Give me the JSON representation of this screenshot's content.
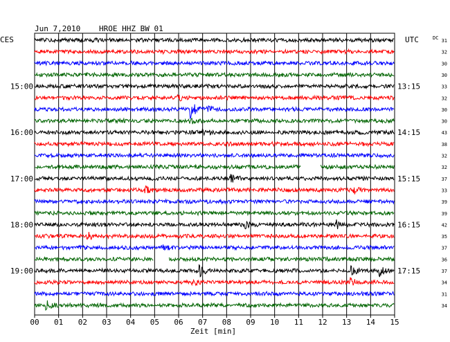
{
  "header": {
    "date": "Jun 7,2010",
    "station": "HROE HHZ BW 01",
    "left_tz": "CES",
    "right_tz": "UTC",
    "dc_label": "DC"
  },
  "chart_data": {
    "type": "line",
    "title": "Jun 7,2010  HROE HHZ BW 01",
    "xlabel": "Zeit [min]",
    "xlim": [
      0,
      15
    ],
    "x_ticks": [
      "00",
      "01",
      "02",
      "03",
      "04",
      "05",
      "06",
      "07",
      "08",
      "09",
      "10",
      "11",
      "12",
      "13",
      "14",
      "15"
    ],
    "row_count": 24,
    "row_interval_min": 15,
    "grid": true,
    "trace_colors": [
      "#000000",
      "#ff0000",
      "#0000ff",
      "#006400"
    ],
    "left_time_labels": [
      {
        "row": 4,
        "label": "15:00"
      },
      {
        "row": 8,
        "label": "16:00"
      },
      {
        "row": 12,
        "label": "17:00"
      },
      {
        "row": 16,
        "label": "18:00"
      },
      {
        "row": 20,
        "label": "19:00"
      }
    ],
    "right_time_labels": [
      {
        "row": 4,
        "label": "13:15"
      },
      {
        "row": 8,
        "label": "14:15"
      },
      {
        "row": 12,
        "label": "15:15"
      },
      {
        "row": 16,
        "label": "16:15"
      },
      {
        "row": 20,
        "label": "17:15"
      }
    ],
    "dc_offsets": [
      "31",
      "32",
      "30",
      "30",
      "33",
      "32",
      "30",
      "30",
      "43",
      "38",
      "32",
      "32",
      "37",
      "33",
      "39",
      "39",
      "42",
      "35",
      "37",
      "36",
      "37",
      "34",
      "31",
      "34"
    ],
    "events": [
      {
        "row": 5,
        "minute": 6.0,
        "amp": 1.3
      },
      {
        "row": 6,
        "minute": 6.5,
        "amp": 4.0
      },
      {
        "row": 6,
        "minute": 7.2,
        "amp": 1.8
      },
      {
        "row": 7,
        "minute": 6.5,
        "amp": 1.3
      },
      {
        "row": 8,
        "minute": 7.0,
        "amp": 1.3
      },
      {
        "row": 12,
        "minute": 8.2,
        "amp": 1.4
      },
      {
        "row": 13,
        "minute": 4.6,
        "amp": 1.3
      },
      {
        "row": 13,
        "minute": 13.3,
        "amp": 1.3
      },
      {
        "row": 16,
        "minute": 8.8,
        "amp": 1.3
      },
      {
        "row": 16,
        "minute": 12.6,
        "amp": 1.7
      },
      {
        "row": 17,
        "minute": 2.2,
        "amp": 1.6
      },
      {
        "row": 18,
        "minute": 5.4,
        "amp": 1.5
      },
      {
        "row": 20,
        "minute": 6.9,
        "amp": 2.0
      },
      {
        "row": 20,
        "minute": 13.2,
        "amp": 1.7
      },
      {
        "row": 20,
        "minute": 14.4,
        "amp": 2.0
      },
      {
        "row": 21,
        "minute": 6.6,
        "amp": 1.5
      },
      {
        "row": 21,
        "minute": 13.2,
        "amp": 1.4
      },
      {
        "row": 23,
        "minute": 0.5,
        "amp": 2.0
      }
    ],
    "gaps": [
      {
        "row": 11,
        "start_min": 11.1,
        "end_min": 11.9
      },
      {
        "row": 19,
        "start_min": 4.95,
        "end_min": 5.6
      }
    ]
  }
}
